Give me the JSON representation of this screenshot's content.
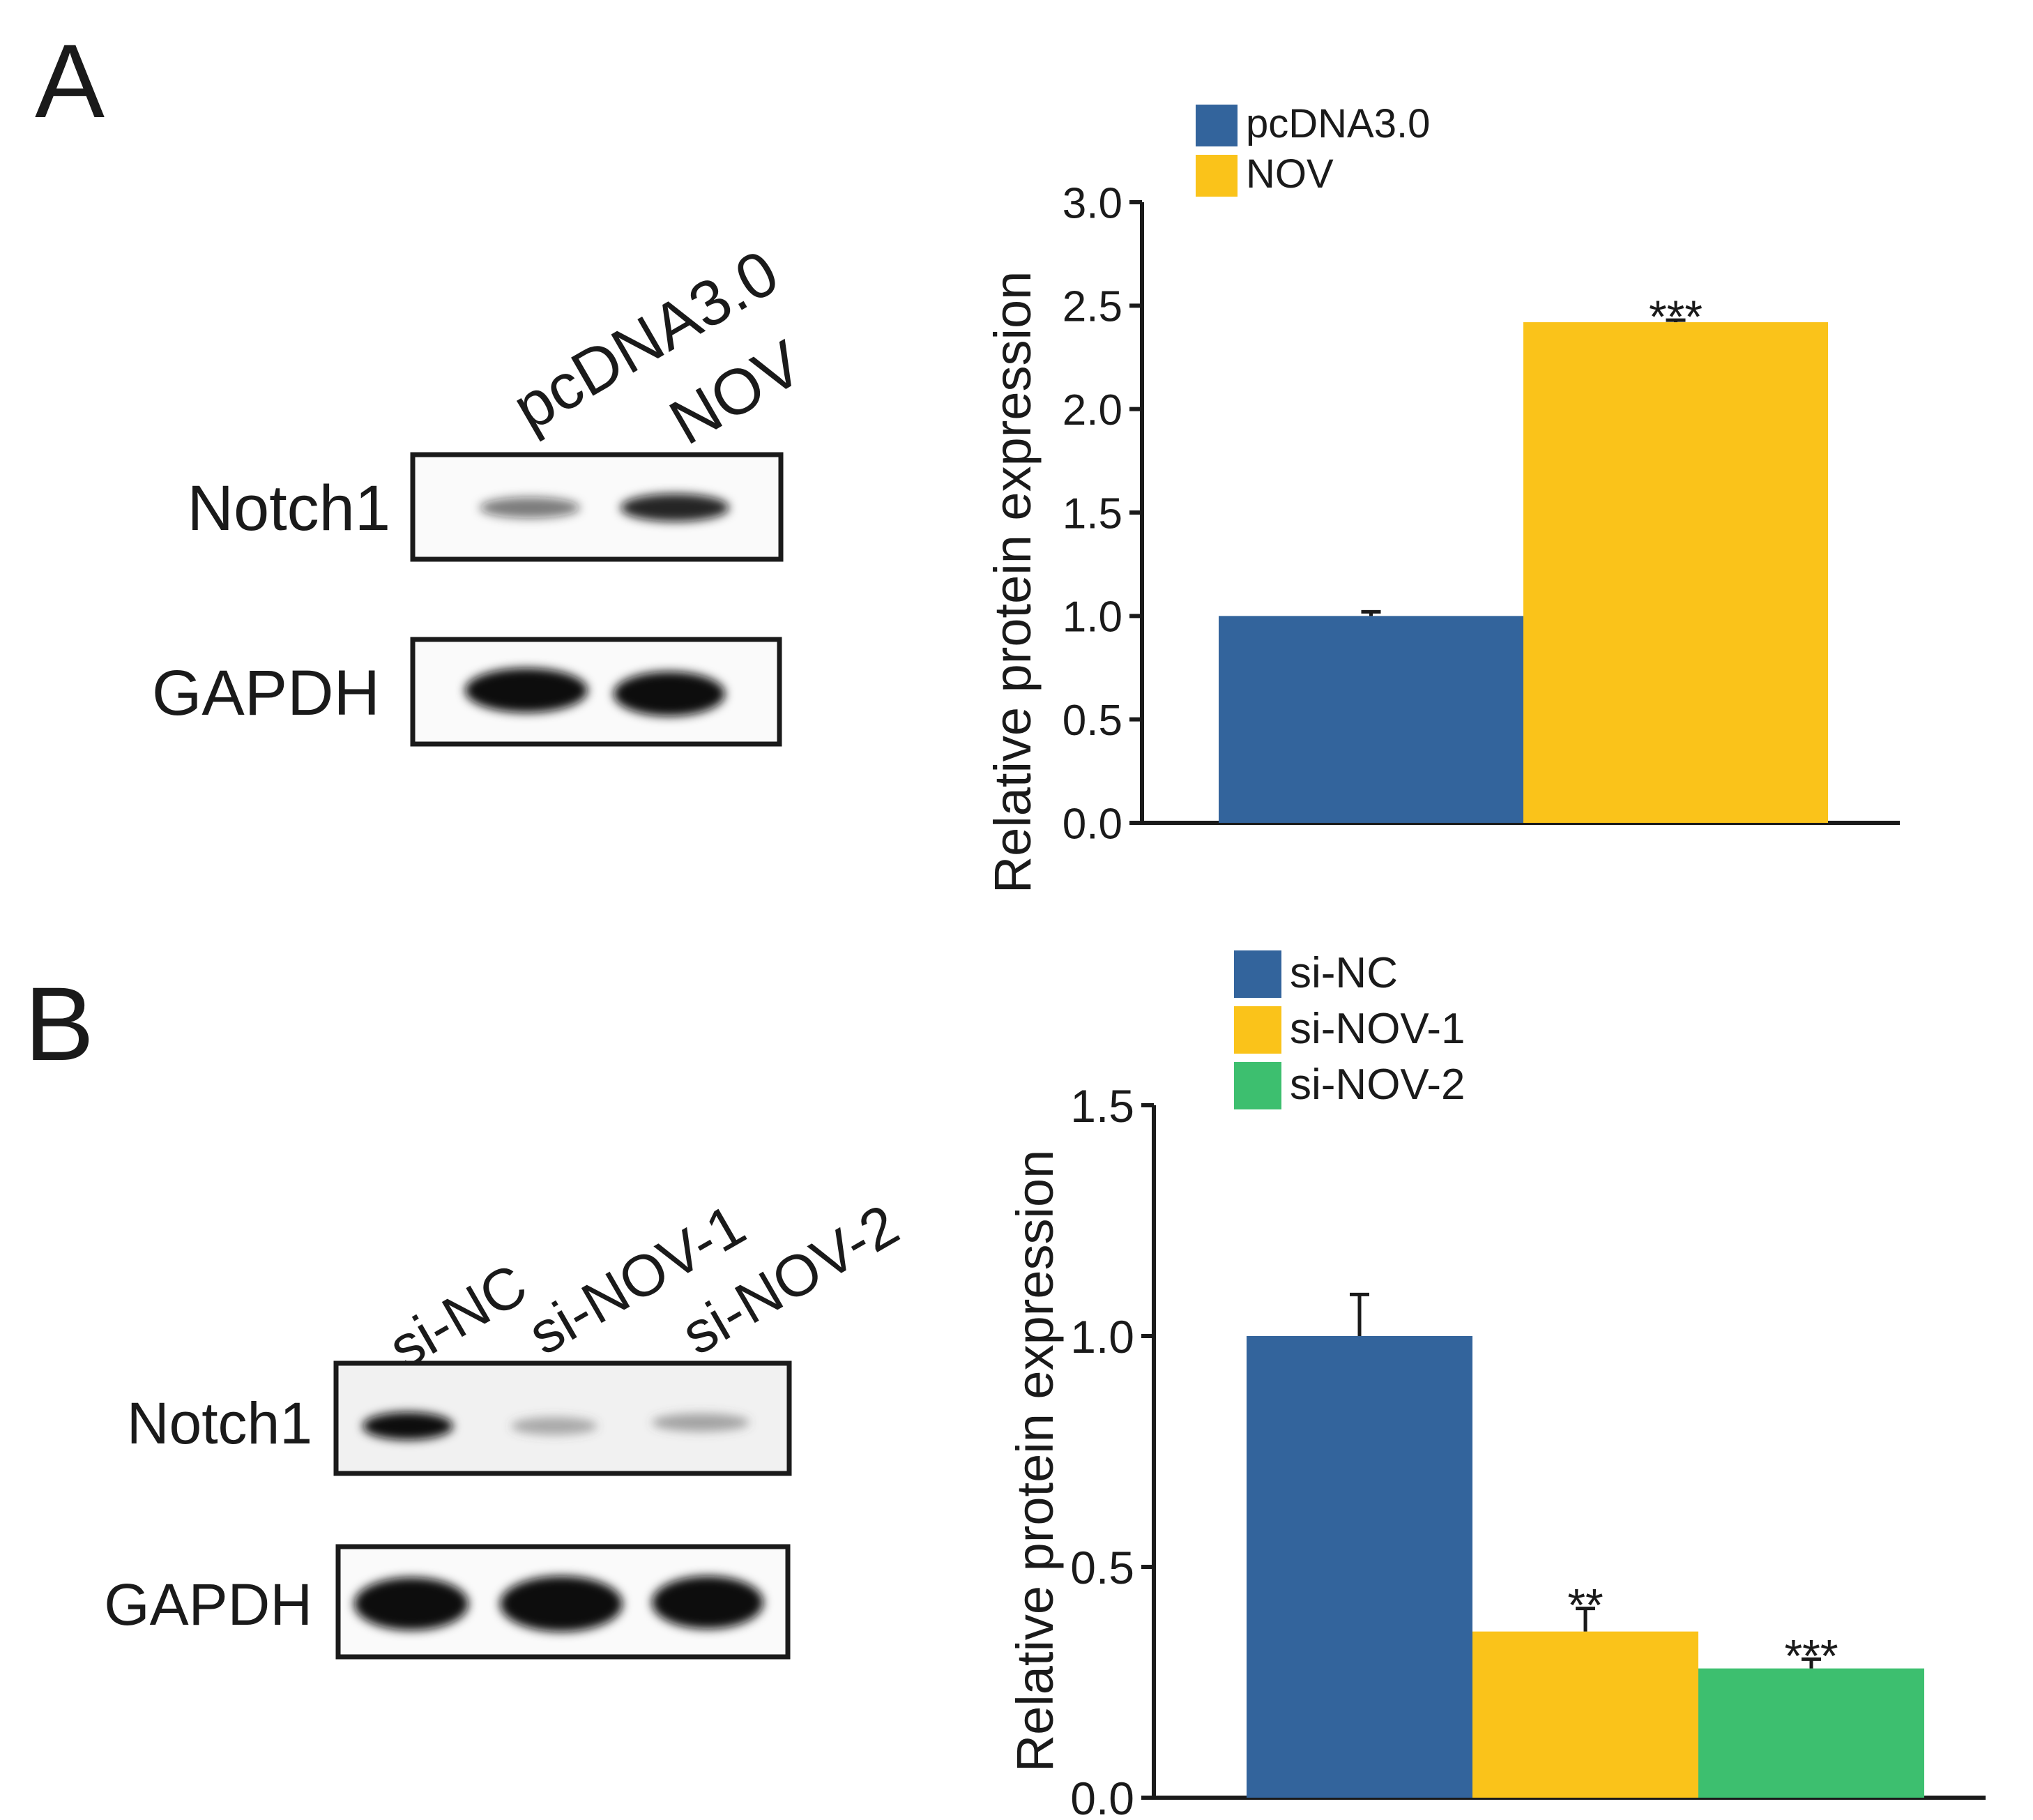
{
  "panels": [
    {
      "letter": "A",
      "blot": {
        "lanes": [
          "pcDNA3.0",
          "NOV"
        ],
        "rows": [
          {
            "label": "Notch1",
            "intensity": [
              0.55,
              0.9
            ]
          },
          {
            "label": "GAPDH",
            "intensity": [
              1.0,
              1.0
            ]
          }
        ]
      }
    },
    {
      "letter": "B",
      "blot": {
        "lanes": [
          "si-NC",
          "si-NOV-1",
          "si-NOV-2"
        ],
        "rows": [
          {
            "label": "Notch1",
            "intensity": [
              0.95,
              0.3,
              0.35
            ]
          },
          {
            "label": "GAPDH",
            "intensity": [
              1.0,
              1.0,
              1.0
            ]
          }
        ]
      }
    }
  ],
  "chart_data": [
    {
      "type": "bar",
      "title": "",
      "xlabel": "",
      "ylabel": "Relative protein expression",
      "ylim": [
        0,
        3.0
      ],
      "yticks": [
        "0.0",
        "0.5",
        "1.0",
        "1.5",
        "2.0",
        "2.5",
        "3.0"
      ],
      "categories": [
        "pcDNA3.0",
        "NOV"
      ],
      "values": [
        1.0,
        2.42
      ],
      "errors": [
        0.02,
        0.01
      ],
      "significance": [
        "",
        "***"
      ],
      "colors": [
        "#33649c",
        "#fac31a"
      ],
      "legend": {
        "position": "top-left",
        "entries": [
          "pcDNA3.0",
          "NOV"
        ]
      }
    },
    {
      "type": "bar",
      "title": "",
      "xlabel": "",
      "ylabel": "Relative protein expression",
      "ylim": [
        0,
        1.5
      ],
      "yticks": [
        "0.0",
        "0.5",
        "1.0",
        "1.5"
      ],
      "categories": [
        "si-NC",
        "si-NOV-1",
        "si-NOV-2"
      ],
      "values": [
        1.0,
        0.36,
        0.28
      ],
      "errors": [
        0.09,
        0.05,
        0.02
      ],
      "significance": [
        "",
        "**",
        "***"
      ],
      "colors": [
        "#33649c",
        "#fac31a",
        "#3dbf6f"
      ],
      "legend": {
        "position": "top-left",
        "entries": [
          "si-NC",
          "si-NOV-1",
          "si-NOV-2"
        ]
      }
    }
  ]
}
